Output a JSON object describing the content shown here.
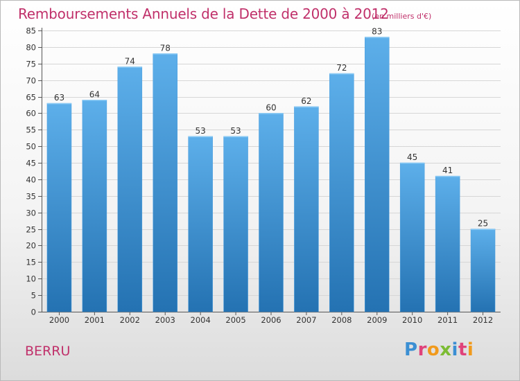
{
  "title": "Remboursements Annuels de la Dette de 2000 à 2012",
  "subtitle": "(en milliers d'€)",
  "commune": "BERRU",
  "logo": {
    "text": "Proxiti",
    "letters": [
      {
        "char": "P",
        "color": "#3b8fd3"
      },
      {
        "char": "r",
        "color": "#e0427a"
      },
      {
        "char": "o",
        "color": "#f19a1c"
      },
      {
        "char": "x",
        "color": "#7cbc33"
      },
      {
        "char": "i",
        "color": "#3b8fd3"
      },
      {
        "char": "t",
        "color": "#e0427a"
      },
      {
        "char": "i",
        "color": "#f19a1c"
      }
    ]
  },
  "colors": {
    "title": "#c0306a",
    "bar_top": "#5dafea",
    "bar_bottom": "#2472b2",
    "grid": "#d6d6d6",
    "axis_text": "#333333"
  },
  "chart_data": {
    "type": "bar",
    "title": "Remboursements Annuels de la Dette de 2000 à 2012",
    "subtitle": "(en milliers d'€)",
    "categories": [
      "2000",
      "2001",
      "2002",
      "2003",
      "2004",
      "2005",
      "2006",
      "2007",
      "2008",
      "2009",
      "2010",
      "2011",
      "2012"
    ],
    "values": [
      63,
      64,
      74,
      78,
      53,
      53,
      60,
      62,
      72,
      83,
      45,
      41,
      25
    ],
    "ylim": [
      0,
      85
    ],
    "yticks": [
      0,
      5,
      10,
      15,
      20,
      25,
      30,
      35,
      40,
      45,
      50,
      55,
      60,
      65,
      70,
      75,
      80,
      85
    ],
    "grid": true,
    "data_labels": true
  }
}
